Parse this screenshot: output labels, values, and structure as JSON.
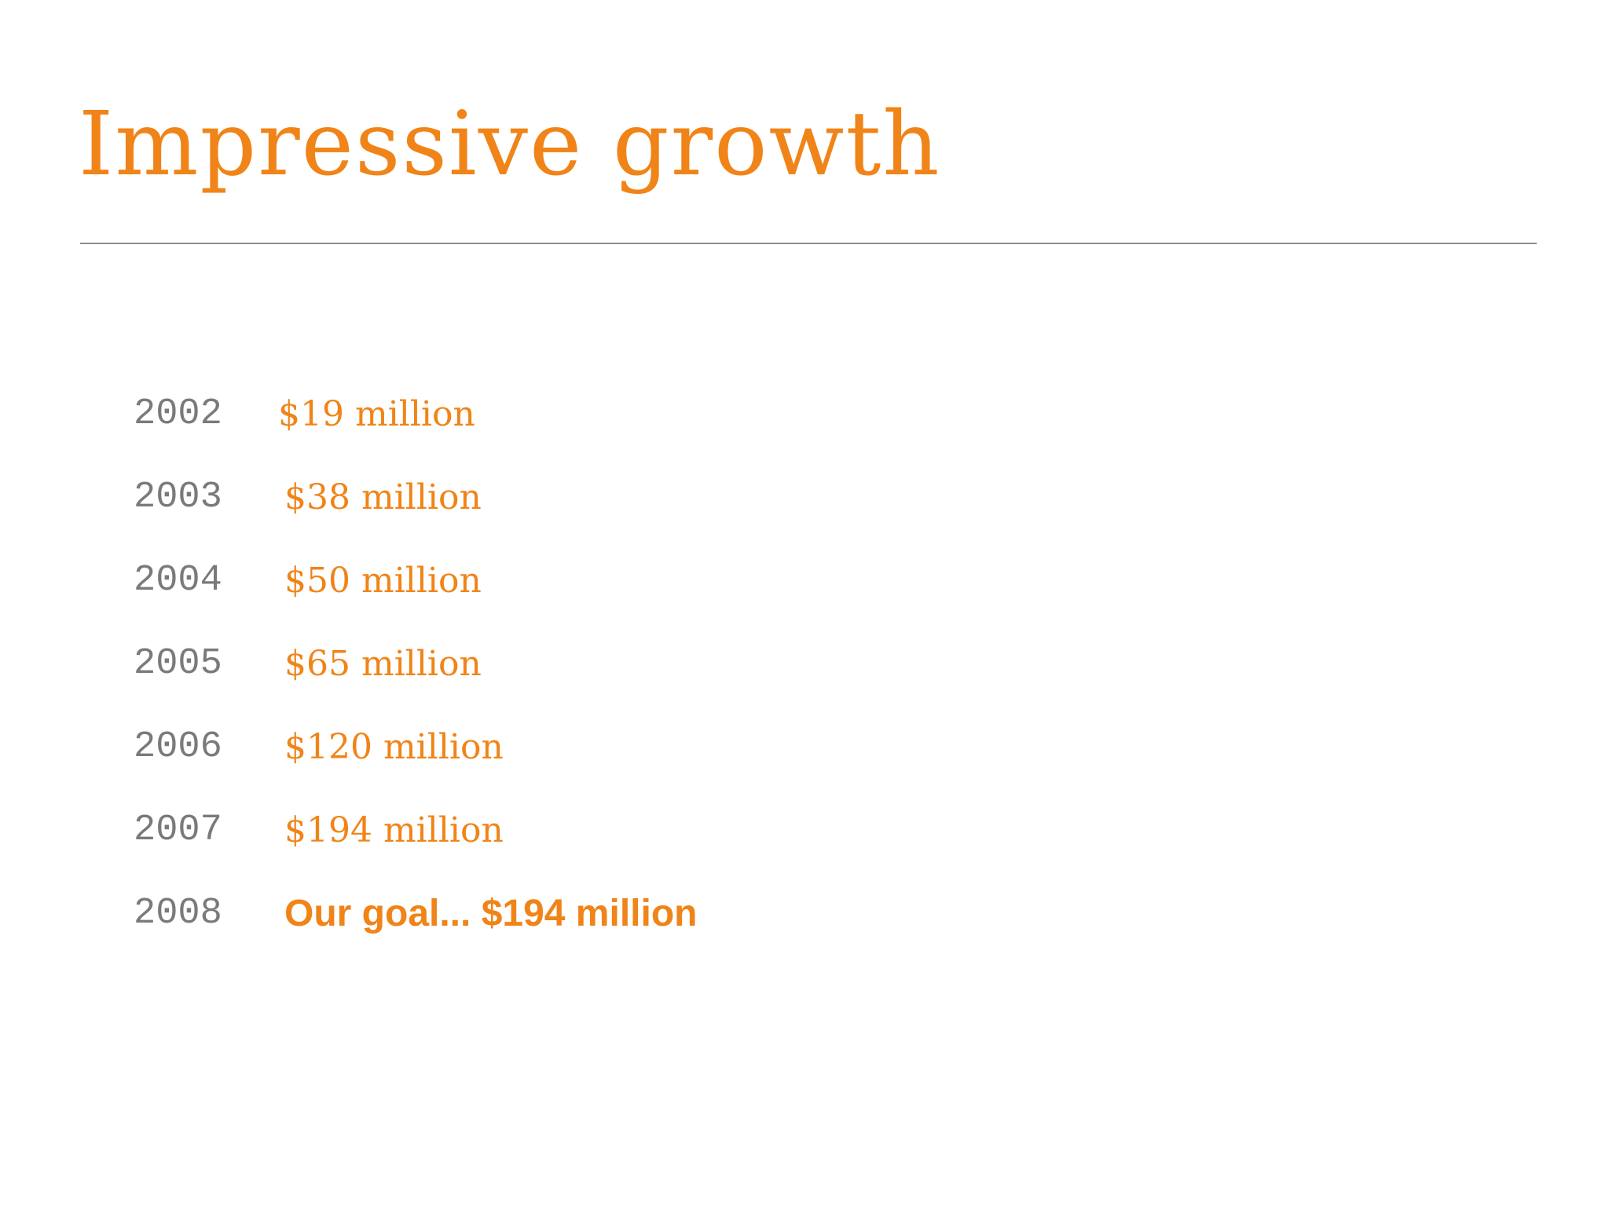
{
  "slide": {
    "title": "Impressive growth",
    "colors": {
      "accent": "#f08418",
      "year_text": "#7a7a7a",
      "rule": "#8e8e8e",
      "background": "#ffffff"
    },
    "rows": [
      {
        "year": "2002",
        "amount": "$19 million"
      },
      {
        "year": "2003",
        "amount": "$38 million"
      },
      {
        "year": "2004",
        "amount": "$50 million"
      },
      {
        "year": "2005",
        "amount": "$65 million"
      },
      {
        "year": "2006",
        "amount": "$120 million"
      },
      {
        "year": "2007",
        "amount": "$194 million"
      },
      {
        "year": "2008",
        "amount": "Our goal... $194 million"
      }
    ]
  }
}
